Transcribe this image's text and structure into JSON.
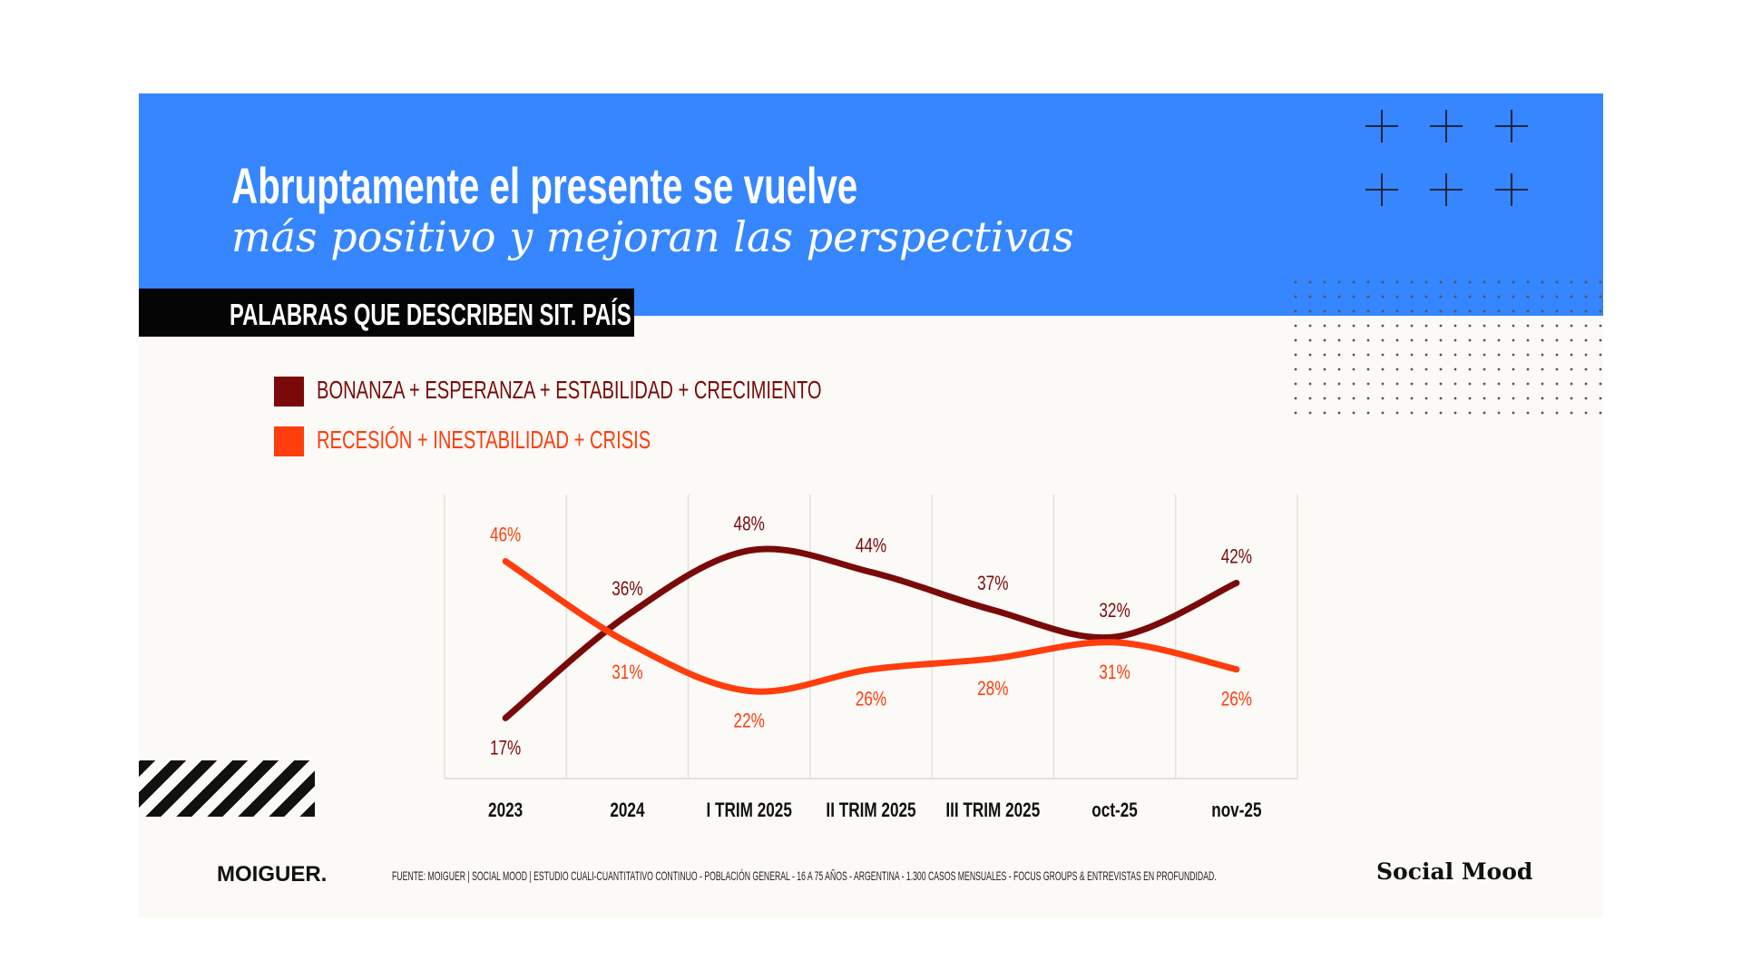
{
  "header": {
    "title_line1": "Abruptamente el presente se vuelve",
    "title_line2": "más positivo y mejoran las perspectivas",
    "section_tag": "PALABRAS QUE DESCRIBEN SIT. PAÍS"
  },
  "colors": {
    "banner": "#3586FF",
    "panel": "#FCFAF6",
    "series_positive": "#7A0A0A",
    "series_negative": "#FF3D0D"
  },
  "chart_data": {
    "type": "line",
    "title": "",
    "xlabel": "",
    "ylabel": "",
    "categories": [
      "2023",
      "2024",
      "I TRIM 2025",
      "II TRIM 2025",
      "III TRIM 2025",
      "oct-25",
      "nov-25"
    ],
    "series": [
      {
        "name": "BONANZA + ESPERANZA + ESTABILIDAD + CRECIMIENTO",
        "color": "#7A0A0A",
        "values": [
          17,
          36,
          48,
          44,
          37,
          32,
          42
        ],
        "labels": [
          "17%",
          "36%",
          "48%",
          "44%",
          "37%",
          "32%",
          "42%"
        ]
      },
      {
        "name": "RECESIÓN + INESTABILIDAD + CRISIS",
        "color": "#FF3D0D",
        "values": [
          46,
          31,
          22,
          26,
          28,
          31,
          26
        ],
        "labels": [
          "46%",
          "31%",
          "22%",
          "26%",
          "28%",
          "31%",
          "26%"
        ]
      }
    ],
    "ylim": [
      10,
      55
    ],
    "grid": "vertical",
    "legend": "top-left"
  },
  "footer": {
    "brand": "MOIGUER.",
    "source": "FUENTE:  MOIGUER | SOCIAL MOOD | ESTUDIO CUALI-CUANTITATIVO CONTINUO - POBLACIÓN GENERAL - 16 A 75 AÑOS - ARGENTINA -  1.300 CASOS MENSUALES - FOCUS GROUPS & ENTREVISTAS EN PROFUNDIDAD.",
    "logo": "Social Mood"
  }
}
